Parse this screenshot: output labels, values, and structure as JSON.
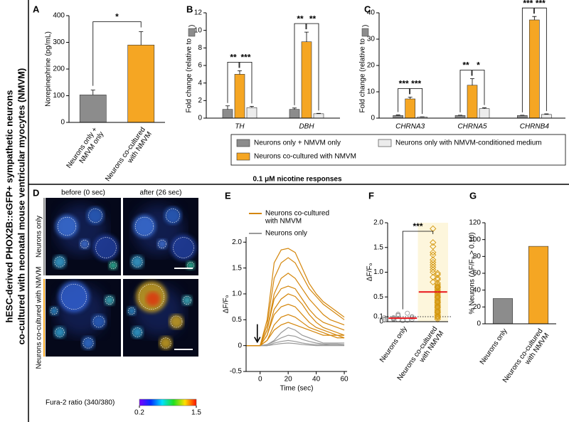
{
  "figure_title": [
    "hESC-derived PHOX2B::eGFP+ sympathetic neurons",
    "co-cultured with neonatal mouse ventricular myocytes (NMVM)"
  ],
  "section_title": "0.1 μM nicotine responses",
  "legend": [
    {
      "name": "Neurons only + NMVM only",
      "color": "#8c8c8c"
    },
    {
      "name": "Neurons co-cultured with NMVM",
      "color": "#f5a623"
    },
    {
      "name": "Neurons only with NMVM-conditioned medium",
      "color": "#ececec"
    }
  ],
  "panel_d": {
    "label": "D",
    "columns": [
      "before (0 sec)",
      "after (26 sec)"
    ],
    "rows": [
      "Neurons only",
      "Neurons co-cultured with NMVM"
    ],
    "colorbar": {
      "label": "Fura-2 ratio (340/380)",
      "min": 0.2,
      "max": 1.5
    }
  },
  "chart_data": [
    {
      "panel": "A",
      "type": "bar",
      "y_label": "Norepinephrine (pg/mL)",
      "categories": [
        [
          "Neurons only +",
          "NMVM only"
        ],
        [
          "Neurons co-cultured",
          "with NMVM"
        ]
      ],
      "values": [
        103,
        290
      ],
      "errors": [
        18,
        50
      ],
      "colors": [
        "#8c8c8c",
        "#f5a623"
      ],
      "ylim": [
        0,
        400
      ],
      "yticks": [
        0,
        100,
        200,
        300,
        400
      ],
      "annotations": [
        "*"
      ]
    },
    {
      "panel": "B",
      "type": "grouped_bar",
      "y_label": "Fold change (relative to",
      "y_label_end": ")",
      "categories": [
        "TH",
        "DBH"
      ],
      "series": [
        {
          "color": "#8c8c8c",
          "values": [
            1.0,
            1.0
          ],
          "errors": [
            0.4,
            0.15
          ]
        },
        {
          "color": "#f5a623",
          "values": [
            5.0,
            8.7
          ],
          "errors": [
            0.4,
            1.1
          ]
        },
        {
          "color": "#ececec",
          "values": [
            1.2,
            0.5
          ],
          "errors": [
            0.15,
            0.05
          ]
        }
      ],
      "ylim": [
        0,
        12
      ],
      "yticks": [
        0,
        2,
        4,
        6,
        8,
        10,
        12
      ],
      "annotations": [
        "**",
        "***",
        "**",
        "**"
      ]
    },
    {
      "panel": "C",
      "type": "grouped_bar",
      "y_label": "Fold change (relative to",
      "y_label_end": ")",
      "categories": [
        "CHRNA3",
        "CHRNA5",
        "CHRNB4"
      ],
      "series": [
        {
          "color": "#8c8c8c",
          "values": [
            1.0,
            1.0,
            1.0
          ],
          "errors": [
            0.2,
            0.1,
            0.1
          ]
        },
        {
          "color": "#f5a623",
          "values": [
            7.3,
            12.5,
            37.3
          ],
          "errors": [
            0.7,
            2.5,
            1.3
          ]
        },
        {
          "color": "#ececec",
          "values": [
            0.4,
            3.6,
            1.4
          ],
          "errors": [
            0.1,
            0.3,
            0.2
          ]
        }
      ],
      "ylim": [
        0,
        40
      ],
      "yticks": [
        0,
        10,
        20,
        30,
        40
      ],
      "annotations": [
        "***",
        "***",
        "**",
        "*",
        "***",
        "***"
      ]
    },
    {
      "panel": "E",
      "type": "line",
      "x_label": "Time (sec)",
      "y_label": "ΔF/Fₒ",
      "stimulus_x": -2,
      "x": [
        -10,
        -5,
        0,
        5,
        10,
        15,
        20,
        25,
        30,
        35,
        40,
        45,
        50,
        55,
        60
      ],
      "groups": [
        {
          "name": [
            "Neurons co-cultured",
            "with NMVM"
          ],
          "color": "#d4860b",
          "traces": [
            [
              0,
              0,
              0,
              0.5,
              1.6,
              1.85,
              1.88,
              1.8,
              1.5,
              1.2,
              1.0,
              0.85,
              0.75,
              0.65,
              0.55
            ],
            [
              0,
              0,
              0,
              0.4,
              1.3,
              1.6,
              1.7,
              1.6,
              1.35,
              1.1,
              0.95,
              0.8,
              0.7,
              0.6,
              0.5
            ],
            [
              0,
              0,
              0,
              0.3,
              1.0,
              1.3,
              1.4,
              1.3,
              1.1,
              0.9,
              0.75,
              0.6,
              0.5,
              0.45,
              0.4
            ],
            [
              0,
              0,
              0,
              0.3,
              0.9,
              1.1,
              1.15,
              1.1,
              0.9,
              0.7,
              0.55,
              0.45,
              0.4,
              0.35,
              0.3
            ],
            [
              0,
              0,
              0,
              0.2,
              0.7,
              0.9,
              1.0,
              0.95,
              0.8,
              0.6,
              0.45,
              0.35,
              0.3,
              0.25,
              0.2
            ],
            [
              0,
              0,
              0,
              0.2,
              0.6,
              0.75,
              0.8,
              0.75,
              0.6,
              0.45,
              0.35,
              0.3,
              0.25,
              0.2,
              0.2
            ],
            [
              0,
              0,
              0,
              0.1,
              0.4,
              0.55,
              0.6,
              0.55,
              0.45,
              0.35,
              0.3,
              0.25,
              0.2,
              0.2,
              0.15
            ],
            [
              0,
              0,
              0,
              0.1,
              0.3,
              0.4,
              0.45,
              0.4,
              0.35,
              0.3,
              0.25,
              0.2,
              0.2,
              0.15,
              0.15
            ]
          ]
        },
        {
          "name": [
            "Neurons only"
          ],
          "color": "#9a9a9a",
          "traces": [
            [
              0,
              0,
              0,
              0.02,
              0.1,
              0.25,
              0.35,
              0.3,
              0.2,
              0.15,
              0.1,
              0.05,
              0.05,
              0.05,
              0.05
            ],
            [
              0,
              0,
              0,
              0.02,
              0.08,
              0.15,
              0.2,
              0.18,
              0.12,
              0.08,
              0.05,
              0.03,
              0.03,
              0.03,
              0.02
            ],
            [
              0,
              0,
              0,
              0,
              0.05,
              0.08,
              0.1,
              0.08,
              0.05,
              0.03,
              0.02,
              0.02,
              0.01,
              0.01,
              0.01
            ],
            [
              0,
              0,
              0,
              0,
              0.02,
              0.04,
              0.05,
              0.04,
              0.02,
              0.01,
              0,
              0,
              0,
              0,
              0
            ]
          ]
        }
      ],
      "xlim": [
        -10,
        62
      ],
      "ylim": [
        -0.5,
        2.1
      ],
      "xticks": [
        0,
        20,
        40,
        60
      ],
      "yticks": [
        -0.5,
        0,
        0.5,
        {
          "value": 1,
          "label": "1.0"
        },
        1.5,
        {
          "value": 2,
          "label": "2.0"
        }
      ]
    },
    {
      "panel": "F",
      "type": "dot",
      "y_label": "ΔF/Fₒ",
      "categories": [
        [
          "Neurons only"
        ],
        [
          "Neurons co-cultured",
          "with NMVM"
        ]
      ],
      "groups": [
        {
          "color": "#9a9a9a",
          "marker": "circle",
          "mean": 0.07,
          "values": [
            0.02,
            0.03,
            0.04,
            0.05,
            0.05,
            0.06,
            0.07,
            0.08,
            0.09,
            0.1,
            0.12,
            0.13,
            0.15,
            0.17,
            0.05,
            0.04,
            0.03,
            0.08
          ]
        },
        {
          "color": "#d4960b",
          "marker": "diamond",
          "mean": 0.6,
          "values": [
            1.88,
            1.6,
            1.52,
            1.4,
            1.35,
            1.25,
            1.2,
            1.15,
            1.1,
            1.05,
            1.0,
            0.98,
            0.95,
            0.9,
            0.88,
            0.85,
            0.8,
            0.78,
            0.75,
            0.72,
            0.7,
            0.68,
            0.65,
            0.62,
            0.6,
            0.58,
            0.55,
            0.52,
            0.5,
            0.48,
            0.45,
            0.42,
            0.4,
            0.38,
            0.35,
            0.32,
            0.3,
            0.28,
            0.25,
            0.22,
            0.2,
            0.18,
            0.15,
            0.12,
            0.1,
            0.08,
            0.05
          ]
        }
      ],
      "mean_color": "#e8141b",
      "threshold": 0.1,
      "ylim": [
        0,
        2
      ],
      "yticks": [
        0,
        0.1,
        0.5,
        {
          "value": 1,
          "label": "1.0"
        },
        1.5,
        {
          "value": 2,
          "label": "2.0"
        }
      ],
      "annotations": [
        "***"
      ]
    },
    {
      "panel": "G",
      "type": "bar",
      "y_label": "% Neurons (ΔF/Fₒ > 0.10)",
      "categories": [
        [
          "Neurons only"
        ],
        [
          "Neurons co-cultured",
          "with NMVM"
        ]
      ],
      "values": [
        30,
        92
      ],
      "colors": [
        "#8c8c8c",
        "#f5a623"
      ],
      "ylim": [
        0,
        120
      ],
      "yticks": [
        0,
        20,
        40,
        60,
        80,
        100,
        120
      ]
    }
  ]
}
